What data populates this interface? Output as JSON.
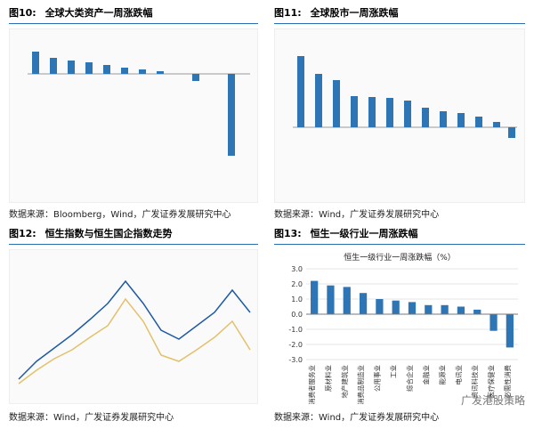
{
  "page": {
    "panels": [
      {
        "label": "图10:",
        "title": "全球大类资产一周涨跌幅",
        "source": "数据来源：Bloomberg，Wind，广发证券发展研究中心"
      },
      {
        "label": "图11:",
        "title": "全球股市一周涨跌幅",
        "source": "数据来源：Wind，广发证券发展研究中心"
      },
      {
        "label": "图12:",
        "title": "恒生指数与恒生国企指数走势",
        "source": "数据来源：Wind，广发证券发展研究中心"
      },
      {
        "label": "图13:",
        "title": "恒生一级行业一周涨跌幅",
        "source": "数据来源：Wind，广发证券发展研究中心"
      }
    ],
    "watermark": "广发港股策略"
  },
  "chart_data": {
    "type": "bar",
    "title": "恒生一级行业一周涨跌幅（%）",
    "categories": [
      "消费者服务业",
      "原材料业",
      "地产建筑业",
      "消费品制造业",
      "公用事业",
      "工业",
      "综合企业",
      "金融业",
      "能源业",
      "电讯业",
      "资讯科技业",
      "医疗保健业",
      "必需性消费"
    ],
    "values": [
      2.2,
      1.9,
      1.8,
      1.4,
      1.0,
      0.9,
      0.8,
      0.6,
      0.6,
      0.5,
      0.3,
      -1.1,
      -2.2
    ],
    "yticks": [
      -3.0,
      -2.0,
      -1.0,
      0.0,
      1.0,
      2.0,
      3.0
    ],
    "ylim": [
      -3,
      3
    ],
    "color": "#2e75b6"
  }
}
